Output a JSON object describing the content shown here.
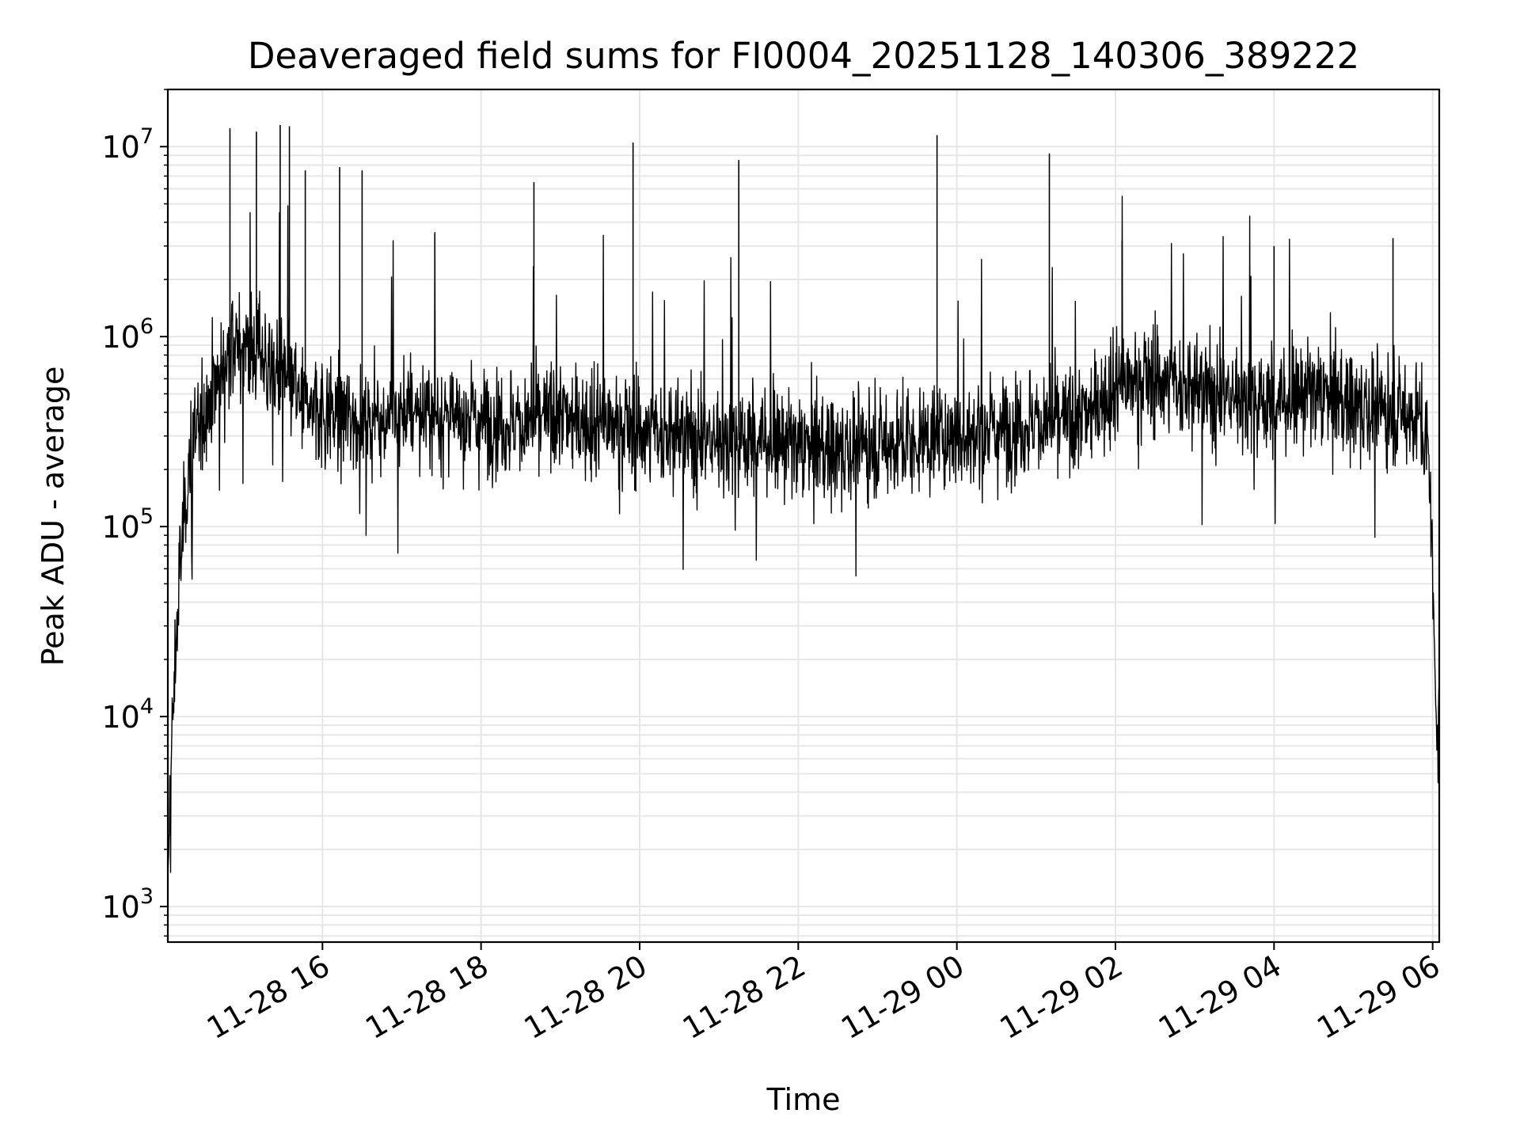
{
  "chart_data": {
    "type": "line",
    "title": "Deaveraged field sums for FI0004_20251128_140306_389222",
    "xlabel": "Time",
    "ylabel": "Peak ADU - average",
    "y_scale": "log",
    "ylim": [
      650,
      20000000
    ],
    "xlim": [
      "2025-11-28 14:03",
      "2025-11-29 06:05"
    ],
    "x_ticks": [
      {
        "value": "2025-11-28 16:00",
        "label": "11-28 16"
      },
      {
        "value": "2025-11-28 18:00",
        "label": "11-28 18"
      },
      {
        "value": "2025-11-28 20:00",
        "label": "11-28 20"
      },
      {
        "value": "2025-11-28 22:00",
        "label": "11-28 22"
      },
      {
        "value": "2025-11-29 00:00",
        "label": "11-29 00"
      },
      {
        "value": "2025-11-29 02:00",
        "label": "11-29 02"
      },
      {
        "value": "2025-11-29 04:00",
        "label": "11-29 04"
      },
      {
        "value": "2025-11-29 06:00",
        "label": "11-29 06"
      }
    ],
    "y_ticks": [
      {
        "value": 1000,
        "base": "10",
        "exp": "3"
      },
      {
        "value": 10000,
        "base": "10",
        "exp": "4"
      },
      {
        "value": 100000,
        "base": "10",
        "exp": "5"
      },
      {
        "value": 1000000,
        "base": "10",
        "exp": "6"
      },
      {
        "value": 10000000,
        "base": "10",
        "exp": "7"
      }
    ],
    "grid": true,
    "line_color": "#000000",
    "grid_color": "#e6e6e6",
    "series": [
      {
        "x": [
          "2025-11-28 14:03",
          "2025-11-28 14:05",
          "2025-11-28 14:08",
          "2025-11-28 14:12",
          "2025-11-28 14:20",
          "2025-11-28 14:30",
          "2025-11-28 14:45",
          "2025-11-28 15:00",
          "2025-11-28 15:15",
          "2025-11-28 15:30",
          "2025-11-28 15:45",
          "2025-11-28 16:00",
          "2025-11-28 16:20",
          "2025-11-28 16:40",
          "2025-11-28 17:00",
          "2025-11-28 17:30",
          "2025-11-28 18:00",
          "2025-11-28 18:30",
          "2025-11-28 19:00",
          "2025-11-28 19:30",
          "2025-11-28 20:00",
          "2025-11-28 20:30",
          "2025-11-28 21:00",
          "2025-11-28 21:30",
          "2025-11-28 22:00",
          "2025-11-28 22:30",
          "2025-11-28 23:00",
          "2025-11-28 23:30",
          "2025-11-29 00:00",
          "2025-11-29 00:30",
          "2025-11-29 01:00",
          "2025-11-29 01:30",
          "2025-11-29 02:00",
          "2025-11-29 02:30",
          "2025-11-29 03:00",
          "2025-11-29 03:30",
          "2025-11-29 04:00",
          "2025-11-29 04:30",
          "2025-11-29 05:00",
          "2025-11-29 05:30",
          "2025-11-29 05:50",
          "2025-11-29 05:58",
          "2025-11-29 06:01",
          "2025-11-29 06:03",
          "2025-11-29 06:05"
        ],
        "values": [
          1000,
          5000,
          15000,
          60000,
          250000,
          400000,
          700000,
          900000,
          800000,
          600000,
          450000,
          400000,
          380000,
          360000,
          400000,
          380000,
          360000,
          350000,
          380000,
          350000,
          320000,
          300000,
          280000,
          290000,
          260000,
          250000,
          270000,
          280000,
          300000,
          320000,
          360000,
          350000,
          550000,
          600000,
          520000,
          480000,
          450000,
          500000,
          430000,
          400000,
          380000,
          200000,
          30000,
          10000,
          7000
        ],
        "spikes": [
          {
            "x": "2025-11-28 14:50",
            "y": 12500000
          },
          {
            "x": "2025-11-28 15:10",
            "y": 12000000
          },
          {
            "x": "2025-11-28 15:28",
            "y": 13000000
          },
          {
            "x": "2025-11-28 15:35",
            "y": 12800000
          },
          {
            "x": "2025-11-28 15:47",
            "y": 7500000
          },
          {
            "x": "2025-11-28 16:13",
            "y": 7800000
          },
          {
            "x": "2025-11-28 16:30",
            "y": 7500000
          },
          {
            "x": "2025-11-28 17:25",
            "y": 3500000
          },
          {
            "x": "2025-11-28 18:40",
            "y": 6500000
          },
          {
            "x": "2025-11-28 19:55",
            "y": 10500000
          },
          {
            "x": "2025-11-28 21:15",
            "y": 8500000
          },
          {
            "x": "2025-11-28 23:45",
            "y": 11500000
          },
          {
            "x": "2025-11-29 01:10",
            "y": 9200000
          },
          {
            "x": "2025-11-29 02:05",
            "y": 3200000
          },
          {
            "x": "2025-11-29 04:00",
            "y": 3000000
          },
          {
            "x": "2025-11-29 05:30",
            "y": 3300000
          }
        ]
      }
    ]
  }
}
